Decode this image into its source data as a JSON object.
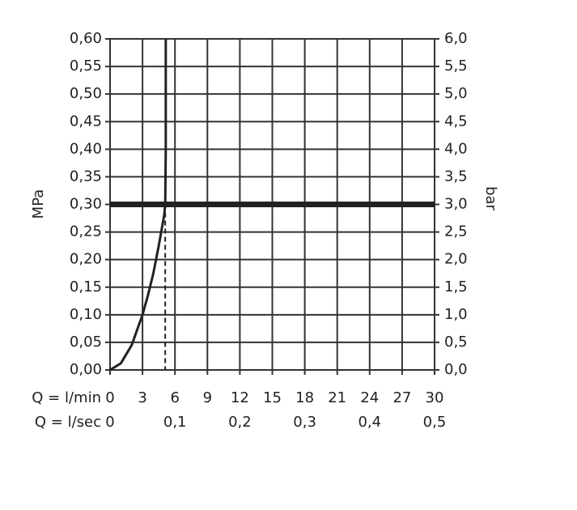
{
  "chart_data": {
    "type": "line",
    "y_label": "MPa",
    "y2_label": "bar",
    "x_label": "Q = l/min",
    "x2_label": "Q = l/sec",
    "x": [
      0,
      1,
      2,
      3,
      3.5,
      4,
      4.5,
      5,
      5.1,
      5.15,
      5.15
    ],
    "series": [
      {
        "color": "#222",
        "values": [
          0,
          0.012,
          0.045,
          0.1,
          0.135,
          0.175,
          0.225,
          0.28,
          0.3,
          0.4,
          0.6
        ]
      }
    ],
    "reference_y": 0.3,
    "dashed_x": 5.1,
    "xlim": [
      0,
      30
    ],
    "xticks": [
      0,
      3,
      6,
      9,
      12,
      15,
      18,
      21,
      24,
      27,
      30
    ],
    "x2lim": [
      0,
      0.5
    ],
    "x2ticks": [
      0,
      {
        "value": 0.1,
        "label": "0,1"
      },
      {
        "value": 0.2,
        "label": "0,2"
      },
      {
        "value": 0.3,
        "label": "0,3"
      },
      {
        "value": 0.4,
        "label": "0,4"
      },
      {
        "value": 0.5,
        "label": "0,5"
      }
    ],
    "ylim": [
      0,
      0.6
    ],
    "yticks": [
      {
        "value": 0,
        "label": "0,00"
      },
      {
        "value": 0.05,
        "label": "0,05"
      },
      {
        "value": 0.1,
        "label": "0,10"
      },
      {
        "value": 0.15,
        "label": "0,15"
      },
      {
        "value": 0.2,
        "label": "0,20"
      },
      {
        "value": 0.25,
        "label": "0,25"
      },
      {
        "value": 0.3,
        "label": "0,30"
      },
      {
        "value": 0.35,
        "label": "0,35"
      },
      {
        "value": 0.4,
        "label": "0,40"
      },
      {
        "value": 0.45,
        "label": "0,45"
      },
      {
        "value": 0.5,
        "label": "0,50"
      },
      {
        "value": 0.55,
        "label": "0,55"
      },
      {
        "value": 0.6,
        "label": "0,60"
      }
    ],
    "y2lim": [
      0,
      6
    ],
    "y2ticks": [
      {
        "value": 0,
        "label": "0,0"
      },
      {
        "value": 0.5,
        "label": "0,5"
      },
      {
        "value": 1,
        "label": "1,0"
      },
      {
        "value": 1.5,
        "label": "1,5"
      },
      {
        "value": 2,
        "label": "2,0"
      },
      {
        "value": 2.5,
        "label": "2,5"
      },
      {
        "value": 3,
        "label": "3,0"
      },
      {
        "value": 3.5,
        "label": "3,5"
      },
      {
        "value": 4,
        "label": "4,0"
      },
      {
        "value": 4.5,
        "label": "4,5"
      },
      {
        "value": 5,
        "label": "5,0"
      },
      {
        "value": 5.5,
        "label": "5,5"
      },
      {
        "value": 6,
        "label": "6,0"
      }
    ],
    "grid": true
  }
}
